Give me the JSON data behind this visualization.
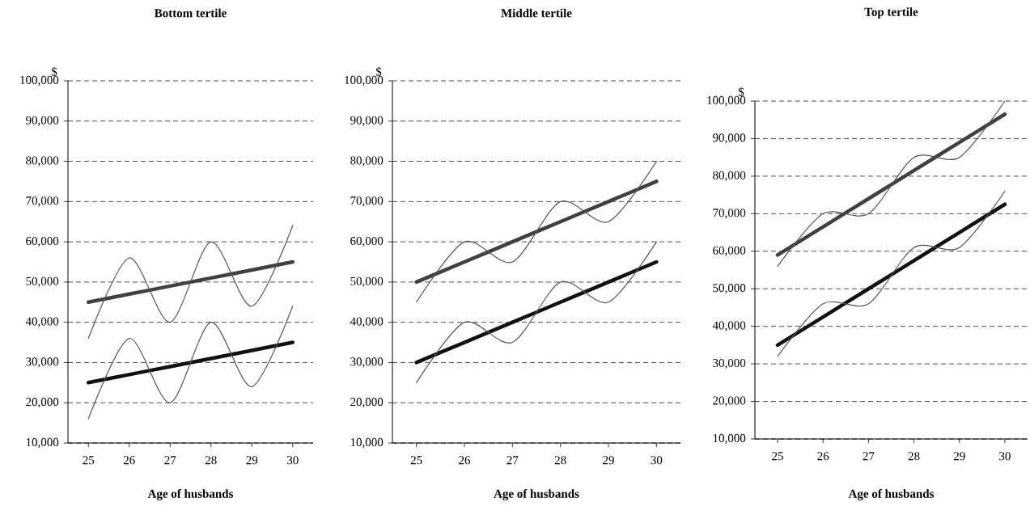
{
  "chart_data": [
    {
      "type": "line",
      "title": "Bottom tertile",
      "xlabel": "Age of husbands",
      "ylabel": "$",
      "x": [
        25,
        26,
        27,
        28,
        29,
        30
      ],
      "xlim": [
        24.5,
        30.5
      ],
      "xticks": [
        25,
        26,
        27,
        28,
        29,
        30
      ],
      "ylim": [
        10000,
        100000
      ],
      "yticks": [
        {
          "value": 10000,
          "label": "10,000"
        },
        {
          "value": 20000,
          "label": "20,000"
        },
        {
          "value": 30000,
          "label": "30,000"
        },
        {
          "value": 40000,
          "label": "40,000"
        },
        {
          "value": 50000,
          "label": "50,000"
        },
        {
          "value": 60000,
          "label": "60,000"
        },
        {
          "value": 70000,
          "label": "70,000"
        },
        {
          "value": 80000,
          "label": "80,000"
        },
        {
          "value": 90000,
          "label": "90,000"
        },
        {
          "value": 100000,
          "label": "100,000"
        }
      ],
      "grid": "y",
      "series": [
        {
          "color": "#404040",
          "values": [
            45000,
            47000,
            49000,
            51000,
            53000,
            55000
          ]
        },
        {
          "color": "#111111",
          "values": [
            25000,
            27000,
            29000,
            31000,
            33000,
            35000
          ]
        },
        {
          "color": "#555555",
          "values": [
            36000,
            56000,
            40000,
            60000,
            44000,
            64000
          ]
        },
        {
          "color": "#555555",
          "values": [
            16000,
            36000,
            20000,
            40000,
            24000,
            44000
          ]
        }
      ]
    },
    {
      "type": "line",
      "title": "Middle tertile",
      "xlabel": "Age of husbands",
      "ylabel": "$",
      "x": [
        25,
        26,
        27,
        28,
        29,
        30
      ],
      "xlim": [
        24.5,
        30.5
      ],
      "xticks": [
        25,
        26,
        27,
        28,
        29,
        30
      ],
      "ylim": [
        10000,
        100000
      ],
      "yticks": [
        {
          "value": 10000,
          "label": "10,000"
        },
        {
          "value": 20000,
          "label": "20,000"
        },
        {
          "value": 30000,
          "label": "30,000"
        },
        {
          "value": 40000,
          "label": "40,000"
        },
        {
          "value": 50000,
          "label": "50,000"
        },
        {
          "value": 60000,
          "label": "60,000"
        },
        {
          "value": 70000,
          "label": "70,000"
        },
        {
          "value": 80000,
          "label": "80,000"
        },
        {
          "value": 90000,
          "label": "90,000"
        },
        {
          "value": 100000,
          "label": "100,000"
        }
      ],
      "grid": "y",
      "series": [
        {
          "color": "#404040",
          "values": [
            50000,
            55000,
            60000,
            65000,
            70000,
            75000
          ]
        },
        {
          "color": "#111111",
          "values": [
            30000,
            35000,
            40000,
            45000,
            50000,
            55000
          ]
        },
        {
          "color": "#555555",
          "values": [
            45000,
            60000,
            55000,
            70000,
            65000,
            80000
          ]
        },
        {
          "color": "#555555",
          "values": [
            25000,
            40000,
            35000,
            50000,
            45000,
            60000
          ]
        }
      ]
    },
    {
      "type": "line",
      "title": "Top tertile",
      "xlabel": "Age of husbands",
      "ylabel": "$",
      "x": [
        25,
        26,
        27,
        28,
        29,
        30
      ],
      "xlim": [
        24.5,
        30.5
      ],
      "xticks": [
        25,
        26,
        27,
        28,
        29,
        30
      ],
      "ylim": [
        10000,
        100000
      ],
      "yticks": [
        {
          "value": 10000,
          "label": "10,000"
        },
        {
          "value": 20000,
          "label": "20,000"
        },
        {
          "value": 30000,
          "label": "30,000"
        },
        {
          "value": 40000,
          "label": "40,000"
        },
        {
          "value": 50000,
          "label": "50,000"
        },
        {
          "value": 60000,
          "label": "60,000"
        },
        {
          "value": 70000,
          "label": "70,000"
        },
        {
          "value": 80000,
          "label": "80,000"
        },
        {
          "value": 90000,
          "label": "90,000"
        },
        {
          "value": 100000,
          "label": "100,000"
        }
      ],
      "grid": "y",
      "series": [
        {
          "color": "#404040",
          "values": [
            59000,
            66500,
            74000,
            81500,
            89000,
            96500
          ]
        },
        {
          "color": "#111111",
          "values": [
            35000,
            42500,
            50000,
            57500,
            65000,
            72500
          ]
        },
        {
          "color": "#555555",
          "values": [
            56000,
            70000,
            70000,
            85000,
            85000,
            100000
          ]
        },
        {
          "color": "#555555",
          "values": [
            32000,
            46000,
            46000,
            61000,
            61000,
            76000
          ]
        }
      ]
    }
  ]
}
